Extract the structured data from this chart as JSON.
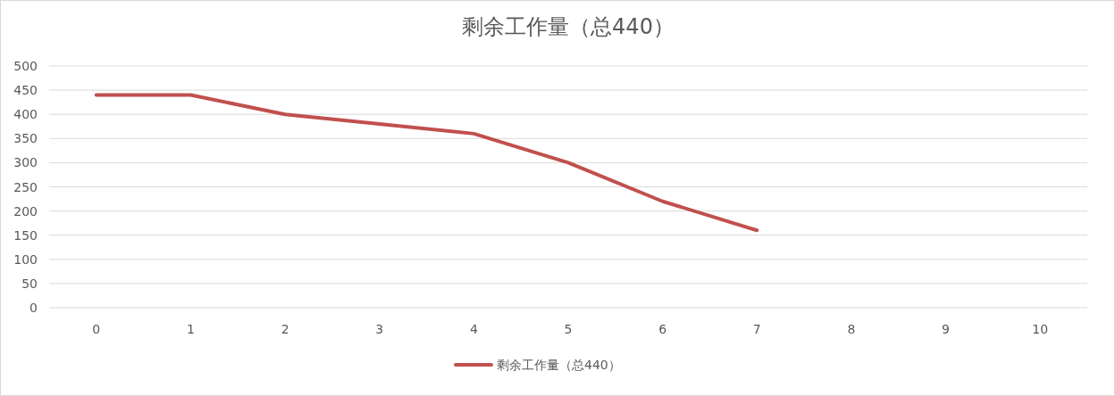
{
  "chart_data": {
    "type": "line",
    "title": "剩余工作量（总440）",
    "categories": [
      "0",
      "1",
      "2",
      "3",
      "4",
      "5",
      "6",
      "7",
      "8",
      "9",
      "10"
    ],
    "series": [
      {
        "name": "剩余工作量（总440）",
        "color": "#c0504d",
        "values": [
          440,
          440,
          400,
          380,
          360,
          300,
          220,
          160,
          null,
          null,
          null
        ]
      }
    ],
    "ylim": [
      0,
      500
    ],
    "yticks": [
      0,
      50,
      100,
      150,
      200,
      250,
      300,
      350,
      400,
      450,
      500
    ],
    "grid": "y",
    "legend": "bottom"
  }
}
